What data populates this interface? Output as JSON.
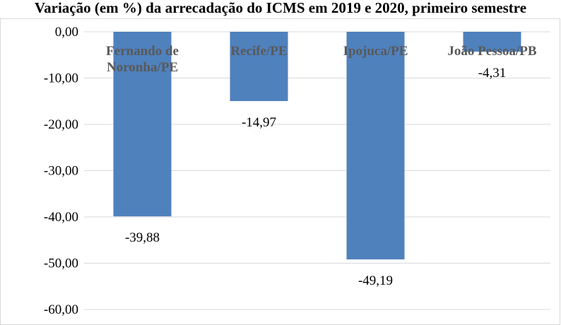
{
  "title": "Variação (em %) da arrecadação do ICMS em 2019 e 2020, primeiro semestre",
  "chart_data": {
    "type": "bar",
    "title": "Variação (em %) da arrecadação do ICMS em 2019 e 2020, primeiro semestre",
    "categories": [
      "Fernando de Noronha/PE",
      "Recife/PE",
      "Ipojuca/PE",
      "João Pessoa/PB"
    ],
    "category_label_lines": [
      [
        "Fernando de",
        "Noronha/PE"
      ],
      [
        "Recife/PE"
      ],
      [
        "Ipojuca/PE"
      ],
      [
        "João Pessoa/PB"
      ]
    ],
    "values": [
      -39.88,
      -14.97,
      -49.19,
      -4.31
    ],
    "data_labels": [
      "-39,88",
      "-14,97",
      "-49,19",
      "-4,31"
    ],
    "y_ticks": [
      "0,00",
      "-10,00",
      "-20,00",
      "-30,00",
      "-40,00",
      "-50,00",
      "-60,00"
    ],
    "ylim": [
      -60,
      0
    ],
    "grid": true,
    "legend": "none",
    "colors": {
      "bar": "#4f81bd",
      "grid": "#d9d9d9",
      "text": "#000000",
      "category_text": "#595959"
    }
  }
}
